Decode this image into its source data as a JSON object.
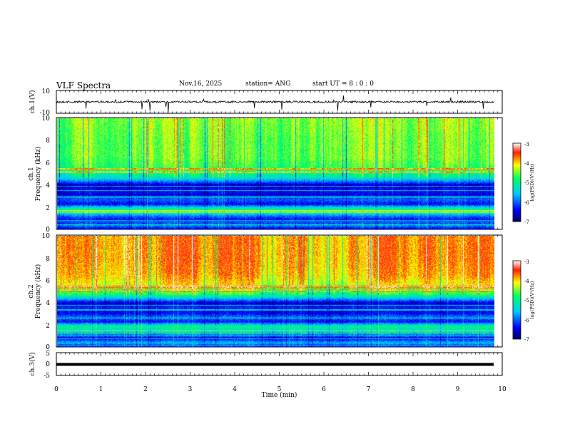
{
  "header": {
    "title": "VLF Spectra",
    "date": "Nov.16, 2025",
    "station": "station= ANG",
    "start_ut": "start  UT  =   8  :  0  :  0"
  },
  "chart_data": {
    "type": "heatmap",
    "x": {
      "label": "Time (min)",
      "range": [
        0,
        10
      ],
      "ticks": [
        "0",
        "1",
        "2",
        "3",
        "4",
        "5",
        "6",
        "7",
        "8",
        "9",
        "10"
      ],
      "data_end": 9.83
    },
    "panels": [
      {
        "kind": "waveform",
        "ylabel": "ch.1(V)",
        "yrange": [
          -10,
          10
        ],
        "ticks": [
          "10",
          "-10"
        ],
        "baseline": 0,
        "description": "noisy trace near 0 V with occasional negative spikes"
      },
      {
        "kind": "spectrogram",
        "ylabel_top": "ch.1",
        "ylabel": "Frequency (kHz)",
        "yrange": [
          0,
          10
        ],
        "ticks": [
          "0",
          "2",
          "4",
          "6",
          "8",
          "10"
        ],
        "colorbar": {
          "label": "log(PSD)(V²/Hz)",
          "range": [
            -7,
            -3
          ],
          "ticks": [
            "-3",
            "-4",
            "-5",
            "-6",
            "-7"
          ]
        },
        "intensity_profile": [
          [
            0.0,
            -6.6
          ],
          [
            0.4,
            -5.8
          ],
          [
            0.8,
            -6.5
          ],
          [
            1.2,
            -6.0
          ],
          [
            1.5,
            -5.3
          ],
          [
            1.9,
            -5.0
          ],
          [
            2.3,
            -6.4
          ],
          [
            2.7,
            -6.0
          ],
          [
            3.1,
            -6.5
          ],
          [
            3.6,
            -6.4
          ],
          [
            4.0,
            -6.7
          ],
          [
            4.3,
            -6.0
          ],
          [
            4.7,
            -5.2
          ],
          [
            5.5,
            -4.7
          ],
          [
            6.5,
            -4.5
          ],
          [
            8.0,
            -4.5
          ],
          [
            10.0,
            -4.4
          ]
        ],
        "level_offset": 0.0
      },
      {
        "kind": "spectrogram",
        "ylabel_top": "ch.2",
        "ylabel": "Frequency (kHz)",
        "yrange": [
          0,
          10
        ],
        "ticks": [
          "0",
          "2",
          "4",
          "6",
          "8",
          "10"
        ],
        "colorbar": {
          "label": "log(PSD)(V²/Hz)",
          "range": [
            -7,
            -3
          ],
          "ticks": [
            "-3",
            "-4",
            "-5",
            "-6",
            "-7"
          ]
        },
        "intensity_profile": [
          [
            0.0,
            -6.6
          ],
          [
            0.4,
            -5.6
          ],
          [
            0.8,
            -6.5
          ],
          [
            1.2,
            -5.8
          ],
          [
            1.5,
            -5.3
          ],
          [
            1.9,
            -5.0
          ],
          [
            2.3,
            -6.4
          ],
          [
            2.7,
            -5.9
          ],
          [
            3.1,
            -6.5
          ],
          [
            3.6,
            -6.3
          ],
          [
            4.0,
            -6.6
          ],
          [
            4.3,
            -5.8
          ],
          [
            4.7,
            -4.9
          ],
          [
            5.5,
            -4.2
          ],
          [
            6.5,
            -3.9
          ],
          [
            8.0,
            -3.8
          ],
          [
            10.0,
            -3.8
          ]
        ],
        "level_offset": 0.0
      },
      {
        "kind": "waveform",
        "ylabel": "ch.3(V)",
        "yrange": [
          -5,
          5
        ],
        "ticks": [
          "5",
          "0",
          "-5"
        ],
        "baseline": 0,
        "description": "flat thick line at 0 V"
      }
    ]
  }
}
